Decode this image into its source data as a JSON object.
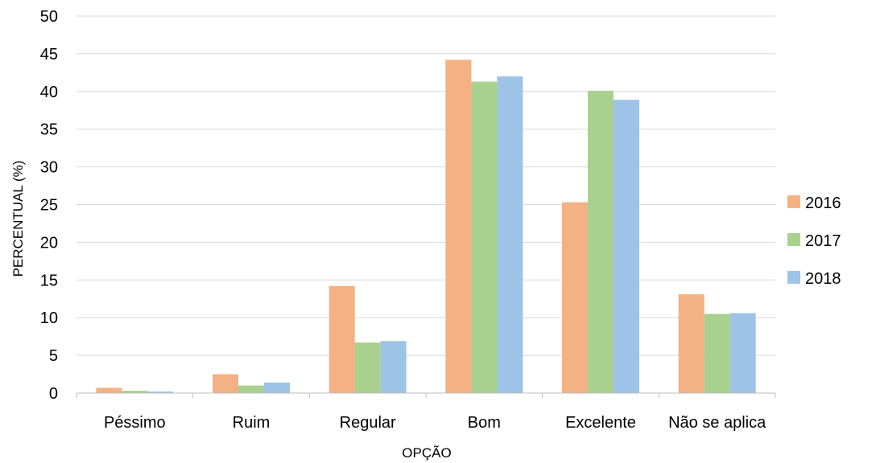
{
  "chart_data": {
    "type": "bar",
    "title": "",
    "xlabel": "OPÇÃO",
    "ylabel": "PERCENTUAL (%)",
    "ylim": [
      0,
      50
    ],
    "ytick_step": 5,
    "grid": true,
    "legend_position": "right",
    "categories": [
      "Péssimo",
      "Ruim",
      "Regular",
      "Bom",
      "Excelente",
      "Não se aplica"
    ],
    "series": [
      {
        "name": "2016",
        "color": "#f4b183",
        "values": [
          0.7,
          2.5,
          14.2,
          44.2,
          25.3,
          13.1
        ]
      },
      {
        "name": "2017",
        "color": "#a9d18e",
        "values": [
          0.3,
          1.0,
          6.7,
          41.3,
          40.1,
          10.5
        ]
      },
      {
        "name": "2018",
        "color": "#9dc3e6",
        "values": [
          0.2,
          1.4,
          6.9,
          42.0,
          38.9,
          10.6
        ]
      }
    ]
  }
}
